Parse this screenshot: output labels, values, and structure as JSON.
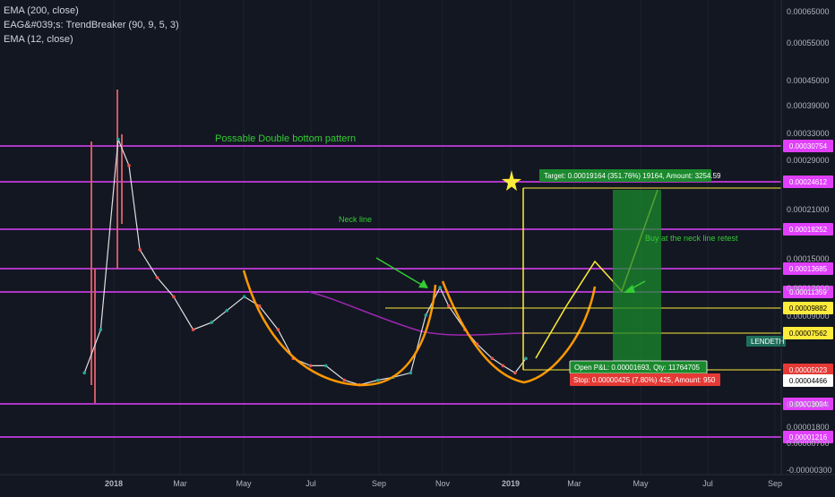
{
  "studies": [
    "EMA (200, close)",
    "EAG&#039;s: TrendBreaker (90, 9, 5, 3)",
    "EMA (12, close)"
  ],
  "colors": {
    "background": "#131722",
    "level_line": "#e040fb",
    "pattern_line": "#ff9800",
    "projection_line": "#ffeb3b",
    "ema200": "#9c27b0",
    "ema12": "#e0e0e0",
    "wick": "#cf5a64",
    "up_candle": "#26a69a",
    "down_candle": "#ef5350",
    "annotation_text": "#33cc33",
    "target_box": "#1b8a2e",
    "stop_box": "#e53935"
  },
  "annotations": {
    "pattern": "Possable Double bottom pattern",
    "neck": "Neck line",
    "buy": "Buy at the neck line retest",
    "target": "Target: 0.00019164 (351.76%) 19164, Amount: 3254.59",
    "pnl": "Open P&L: 0.00001693, Qty: 11764705",
    "stop": "Stop: 0.00000425 (7.80%) 425, Amount: 950",
    "symbol": "LENDETH"
  },
  "chart_data": {
    "type": "line",
    "x_axis_labels": [
      "2018",
      "Mar",
      "May",
      "Jul",
      "Sep",
      "Nov",
      "2019",
      "Mar",
      "May",
      "Jul",
      "Sep"
    ],
    "y_axis_labels": [
      "0.00065000",
      "0.00055000",
      "0.00045000",
      "0.00039000",
      "0.00033000",
      "0.00029000",
      "0.00021000",
      "0.00015000",
      "0.00012000",
      "0.00009000",
      "0.00004466",
      "0.00003004",
      "0.00001800",
      "0.00000700",
      "-0.00000300"
    ],
    "horizontal_levels": [
      "0.00030754",
      "0.00024612",
      "0.00018252",
      "0.00013685",
      "0.00011359",
      "0.00003004",
      "0.00001216"
    ],
    "price_tags": {
      "neck": "0.00009882",
      "current": "0.00007562",
      "stop": "0.00005023",
      "low": "0.00004466"
    },
    "series": [
      {
        "x": [
          "2017-12-05",
          "2017-12-20",
          "2018-01-05",
          "2018-01-15",
          "2018-01-25",
          "2018-02-10",
          "2018-02-25",
          "2018-03-15",
          "2018-04-01",
          "2018-04-15",
          "2018-05-01",
          "2018-05-15",
          "2018-06-01",
          "2018-06-15",
          "2018-07-01",
          "2018-07-15",
          "2018-08-01",
          "2018-08-15",
          "2018-09-01",
          "2018-09-15",
          "2018-10-01",
          "2018-10-15",
          "2018-10-28",
          "2018-11-05",
          "2018-11-20",
          "2018-12-01",
          "2018-12-15",
          "2018-12-25",
          "2019-01-05",
          "2019-01-15"
        ],
        "values": [
          5e-05,
          8e-05,
          0.00032,
          0.00028,
          0.00016,
          0.00013,
          0.00011,
          8e-05,
          8.5e-05,
          9.5e-05,
          0.00011,
          0.0001,
          8e-05,
          6e-05,
          5.5e-05,
          5.5e-05,
          4.5e-05,
          4.2e-05,
          4.5e-05,
          4.7e-05,
          5e-05,
          9e-05,
          0.00012,
          0.0001,
          8e-05,
          7e-05,
          6e-05,
          5.5e-05,
          5e-05,
          6e-05
        ]
      }
    ]
  }
}
